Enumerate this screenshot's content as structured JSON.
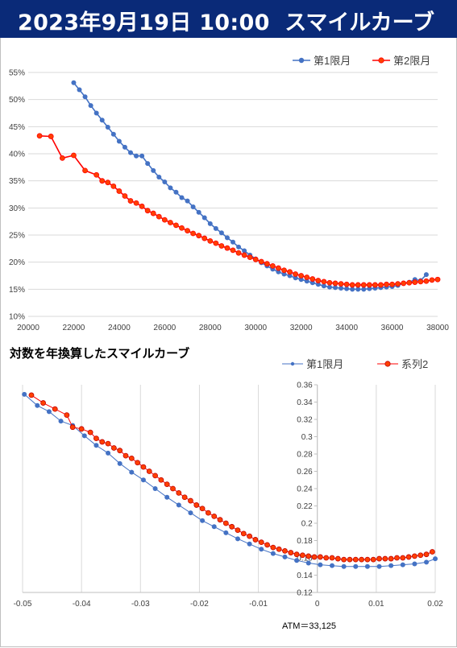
{
  "header": {
    "date": "2023年9月19日 10:00",
    "title": "スマイルカーブ"
  },
  "colors": {
    "header_bg": "#0a2a78",
    "series_blue": "#4472c4",
    "series_red": "#ff0000",
    "series_red_fill": "#ff4000",
    "grid": "#d9d9d9"
  },
  "chart_data": [
    {
      "type": "line",
      "title": "",
      "xlabel": "",
      "ylabel": "",
      "xlim": [
        20000,
        38000
      ],
      "ylim": [
        0.1,
        0.55
      ],
      "x_ticks": [
        "20000",
        "22000",
        "24000",
        "26000",
        "28000",
        "30000",
        "32000",
        "34000",
        "36000",
        "38000"
      ],
      "y_ticks": [
        "10%",
        "15%",
        "20%",
        "25%",
        "30%",
        "35%",
        "40%",
        "45%",
        "50%",
        "55%"
      ],
      "legend": "top-right",
      "series": [
        {
          "name": "第1限月",
          "color": "#4472c4",
          "points": [
            [
              22000,
              0.531
            ],
            [
              22250,
              0.518
            ],
            [
              22500,
              0.505
            ],
            [
              22750,
              0.489
            ],
            [
              23000,
              0.475
            ],
            [
              23250,
              0.462
            ],
            [
              23500,
              0.449
            ],
            [
              23750,
              0.436
            ],
            [
              24000,
              0.423
            ],
            [
              24250,
              0.412
            ],
            [
              24500,
              0.402
            ],
            [
              24750,
              0.396
            ],
            [
              25000,
              0.396
            ],
            [
              25250,
              0.382
            ],
            [
              25500,
              0.369
            ],
            [
              25750,
              0.357
            ],
            [
              26000,
              0.348
            ],
            [
              26250,
              0.337
            ],
            [
              26500,
              0.329
            ],
            [
              26750,
              0.319
            ],
            [
              27000,
              0.313
            ],
            [
              27250,
              0.302
            ],
            [
              27500,
              0.292
            ],
            [
              27750,
              0.282
            ],
            [
              28000,
              0.271
            ],
            [
              28250,
              0.262
            ],
            [
              28500,
              0.254
            ],
            [
              28750,
              0.245
            ],
            [
              29000,
              0.237
            ],
            [
              29250,
              0.228
            ],
            [
              29500,
              0.221
            ],
            [
              29750,
              0.213
            ],
            [
              30000,
              0.206
            ],
            [
              30250,
              0.199
            ],
            [
              30500,
              0.193
            ],
            [
              30750,
              0.187
            ],
            [
              31000,
              0.182
            ],
            [
              31250,
              0.178
            ],
            [
              31500,
              0.175
            ],
            [
              31750,
              0.171
            ],
            [
              32000,
              0.168
            ],
            [
              32250,
              0.165
            ],
            [
              32500,
              0.162
            ],
            [
              32750,
              0.159
            ],
            [
              33000,
              0.156
            ],
            [
              33250,
              0.154
            ],
            [
              33500,
              0.153
            ],
            [
              33750,
              0.152
            ],
            [
              34000,
              0.151
            ],
            [
              34250,
              0.15
            ],
            [
              34500,
              0.15
            ],
            [
              34750,
              0.15
            ],
            [
              35000,
              0.151
            ],
            [
              35250,
              0.152
            ],
            [
              35500,
              0.153
            ],
            [
              35750,
              0.154
            ],
            [
              36000,
              0.155
            ],
            [
              36250,
              0.157
            ],
            [
              36500,
              0.161
            ],
            [
              36750,
              0.163
            ],
            [
              37000,
              0.168
            ],
            [
              37250,
              0.166
            ],
            [
              37500,
              0.177
            ]
          ]
        },
        {
          "name": "第2限月",
          "color": "#ff0000",
          "points": [
            [
              20500,
              0.433
            ],
            [
              21000,
              0.432
            ],
            [
              21500,
              0.392
            ],
            [
              22000,
              0.397
            ],
            [
              22500,
              0.369
            ],
            [
              23000,
              0.361
            ],
            [
              23250,
              0.35
            ],
            [
              23500,
              0.347
            ],
            [
              23750,
              0.34
            ],
            [
              24000,
              0.331
            ],
            [
              24250,
              0.322
            ],
            [
              24500,
              0.313
            ],
            [
              24750,
              0.309
            ],
            [
              25000,
              0.303
            ],
            [
              25250,
              0.295
            ],
            [
              25500,
              0.29
            ],
            [
              25750,
              0.284
            ],
            [
              26000,
              0.278
            ],
            [
              26250,
              0.273
            ],
            [
              26500,
              0.268
            ],
            [
              26750,
              0.263
            ],
            [
              27000,
              0.258
            ],
            [
              27250,
              0.253
            ],
            [
              27500,
              0.249
            ],
            [
              27750,
              0.244
            ],
            [
              28000,
              0.239
            ],
            [
              28250,
              0.235
            ],
            [
              28500,
              0.23
            ],
            [
              28750,
              0.226
            ],
            [
              29000,
              0.222
            ],
            [
              29250,
              0.217
            ],
            [
              29500,
              0.213
            ],
            [
              29750,
              0.209
            ],
            [
              30000,
              0.205
            ],
            [
              30250,
              0.201
            ],
            [
              30500,
              0.197
            ],
            [
              30750,
              0.193
            ],
            [
              31000,
              0.189
            ],
            [
              31250,
              0.185
            ],
            [
              31500,
              0.182
            ],
            [
              31750,
              0.178
            ],
            [
              32000,
              0.175
            ],
            [
              32250,
              0.172
            ],
            [
              32500,
              0.169
            ],
            [
              32750,
              0.166
            ],
            [
              33000,
              0.164
            ],
            [
              33250,
              0.162
            ],
            [
              33500,
              0.161
            ],
            [
              33750,
              0.16
            ],
            [
              34000,
              0.159
            ],
            [
              34250,
              0.158
            ],
            [
              34500,
              0.158
            ],
            [
              34750,
              0.158
            ],
            [
              35000,
              0.158
            ],
            [
              35250,
              0.158
            ],
            [
              35500,
              0.158
            ],
            [
              35750,
              0.159
            ],
            [
              36000,
              0.159
            ],
            [
              36250,
              0.16
            ],
            [
              36500,
              0.161
            ],
            [
              36750,
              0.162
            ],
            [
              37000,
              0.163
            ],
            [
              37250,
              0.164
            ],
            [
              37500,
              0.165
            ],
            [
              37750,
              0.167
            ],
            [
              38000,
              0.168
            ]
          ]
        }
      ]
    },
    {
      "type": "scatter",
      "title": "対数を年換算したスマイルカーブ",
      "xlabel": "",
      "ylabel": "",
      "xlim": [
        -0.05,
        0.02
      ],
      "ylim": [
        0.12,
        0.36
      ],
      "x_ticks": [
        "-0.05",
        "-0.04",
        "-0.03",
        "-0.02",
        "-0.01",
        "0",
        "0.01",
        "0.02"
      ],
      "y_ticks": [
        "0.12",
        "0.14",
        "0.16",
        "0.18",
        "0.2",
        "0.22",
        "0.24",
        "0.26",
        "0.28",
        "0.3",
        "0.32",
        "0.34",
        "0.36"
      ],
      "legend": "top-right",
      "annotation": "ATM＝33,125",
      "series": [
        {
          "name": "第1限月",
          "color": "#4472c4",
          "points": [
            [
              -0.0497,
              0.349
            ],
            [
              -0.0475,
              0.336
            ],
            [
              -0.0455,
              0.329
            ],
            [
              -0.0435,
              0.318
            ],
            [
              -0.0415,
              0.313
            ],
            [
              -0.0395,
              0.301
            ],
            [
              -0.0375,
              0.29
            ],
            [
              -0.0355,
              0.281
            ],
            [
              -0.0335,
              0.269
            ],
            [
              -0.0315,
              0.259
            ],
            [
              -0.0295,
              0.25
            ],
            [
              -0.0275,
              0.24
            ],
            [
              -0.0255,
              0.23
            ],
            [
              -0.0235,
              0.221
            ],
            [
              -0.0215,
              0.212
            ],
            [
              -0.0195,
              0.203
            ],
            [
              -0.0175,
              0.196
            ],
            [
              -0.0155,
              0.189
            ],
            [
              -0.0135,
              0.182
            ],
            [
              -0.0115,
              0.176
            ],
            [
              -0.0095,
              0.17
            ],
            [
              -0.0075,
              0.165
            ],
            [
              -0.0055,
              0.161
            ],
            [
              -0.0035,
              0.157
            ],
            [
              -0.0015,
              0.154
            ],
            [
              0.0005,
              0.152
            ],
            [
              0.0025,
              0.151
            ],
            [
              0.0045,
              0.15
            ],
            [
              0.0065,
              0.15
            ],
            [
              0.0085,
              0.15
            ],
            [
              0.0105,
              0.15
            ],
            [
              0.0125,
              0.151
            ],
            [
              0.0145,
              0.152
            ],
            [
              0.0165,
              0.153
            ],
            [
              0.0185,
              0.155
            ],
            [
              0.02,
              0.159
            ]
          ]
        },
        {
          "name": "系列2",
          "color": "#ff4000",
          "points": [
            [
              -0.0485,
              0.348
            ],
            [
              -0.0465,
              0.339
            ],
            [
              -0.0445,
              0.332
            ],
            [
              -0.0425,
              0.325
            ],
            [
              -0.0415,
              0.311
            ],
            [
              -0.04,
              0.309
            ],
            [
              -0.0385,
              0.305
            ],
            [
              -0.0375,
              0.298
            ],
            [
              -0.0365,
              0.294
            ],
            [
              -0.0355,
              0.292
            ],
            [
              -0.0345,
              0.287
            ],
            [
              -0.0335,
              0.284
            ],
            [
              -0.0325,
              0.278
            ],
            [
              -0.0315,
              0.275
            ],
            [
              -0.0305,
              0.27
            ],
            [
              -0.0295,
              0.265
            ],
            [
              -0.0285,
              0.26
            ],
            [
              -0.0275,
              0.255
            ],
            [
              -0.0265,
              0.25
            ],
            [
              -0.0255,
              0.245
            ],
            [
              -0.0245,
              0.24
            ],
            [
              -0.0235,
              0.235
            ],
            [
              -0.0225,
              0.23
            ],
            [
              -0.0215,
              0.226
            ],
            [
              -0.0205,
              0.221
            ],
            [
              -0.0195,
              0.217
            ],
            [
              -0.0185,
              0.212
            ],
            [
              -0.0175,
              0.208
            ],
            [
              -0.0165,
              0.204
            ],
            [
              -0.0155,
              0.2
            ],
            [
              -0.0145,
              0.196
            ],
            [
              -0.0135,
              0.192
            ],
            [
              -0.0125,
              0.188
            ],
            [
              -0.0115,
              0.185
            ],
            [
              -0.0105,
              0.181
            ],
            [
              -0.0095,
              0.178
            ],
            [
              -0.0085,
              0.175
            ],
            [
              -0.0075,
              0.172
            ],
            [
              -0.0065,
              0.17
            ],
            [
              -0.0055,
              0.168
            ],
            [
              -0.0045,
              0.166
            ],
            [
              -0.0035,
              0.164
            ],
            [
              -0.0025,
              0.163
            ],
            [
              -0.0015,
              0.162
            ],
            [
              -0.0005,
              0.161
            ],
            [
              0.0005,
              0.161
            ],
            [
              0.0015,
              0.16
            ],
            [
              0.0025,
              0.16
            ],
            [
              0.0035,
              0.159
            ],
            [
              0.0045,
              0.158
            ],
            [
              0.0055,
              0.158
            ],
            [
              0.0065,
              0.158
            ],
            [
              0.0075,
              0.158
            ],
            [
              0.0085,
              0.158
            ],
            [
              0.0095,
              0.158
            ],
            [
              0.0105,
              0.159
            ],
            [
              0.0115,
              0.159
            ],
            [
              0.0125,
              0.159
            ],
            [
              0.0135,
              0.16
            ],
            [
              0.0145,
              0.16
            ],
            [
              0.0155,
              0.161
            ],
            [
              0.0165,
              0.162
            ],
            [
              0.0175,
              0.163
            ],
            [
              0.0185,
              0.164
            ],
            [
              0.0195,
              0.167
            ]
          ]
        }
      ]
    }
  ]
}
